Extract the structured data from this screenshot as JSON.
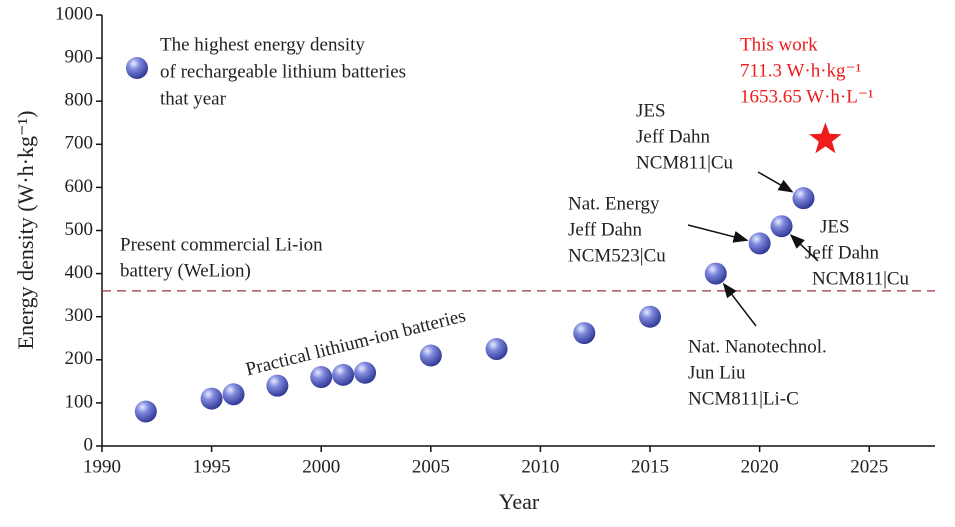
{
  "chart_data": {
    "type": "scatter",
    "x_label": "Year",
    "y_label": "Energy density (W·h·kg⁻¹)",
    "xlim": [
      1990,
      2028
    ],
    "ylim": [
      0,
      1000
    ],
    "xticks": [
      1990,
      1995,
      2000,
      2005,
      2010,
      2015,
      2020,
      2025
    ],
    "yticks": [
      0,
      100,
      200,
      300,
      400,
      500,
      600,
      700,
      800,
      900,
      1000
    ],
    "series": [
      {
        "name": "The highest energy density|of rechargeable lithium batteries|that year",
        "color": "#4a55b8",
        "x": [
          1992,
          1995,
          1996,
          1998,
          2000,
          2001,
          2002,
          2005,
          2008,
          2012,
          2015,
          2018,
          2020,
          2021,
          2022
        ],
        "values": [
          80,
          110,
          120,
          140,
          160,
          165,
          170,
          210,
          225,
          262,
          300,
          400,
          470,
          510,
          575
        ]
      }
    ],
    "legend_lines": [
      "The highest energy density",
      "of rechargeable lithium batteries",
      "that year"
    ],
    "star": {
      "x": 2023,
      "y": 711.3,
      "color": "#ee1c1c",
      "lines": [
        "This work",
        "711.3 W·h·kg⁻¹",
        "1653.65 W·h·L⁻¹"
      ]
    },
    "reference_line": {
      "y": 360,
      "color": "#a0303a",
      "lines": [
        "Present commercial Li-ion",
        "battery (WeLion)"
      ]
    },
    "annotations": [
      {
        "lines": [
          "JES",
          "Jeff Dahn",
          "NCM811|Cu"
        ]
      },
      {
        "lines": [
          "Nat. Energy",
          "Jeff Dahn",
          "NCM523|Cu"
        ]
      },
      {
        "lines": [
          "JES",
          "Jeff Dahn",
          "NCM811|Cu"
        ]
      },
      {
        "lines": [
          "Nat. Nanotechnol.",
          "Jun Liu",
          "NCM811|Li-C"
        ]
      },
      {
        "lines": [
          "Practical lithium-ion batteries"
        ]
      }
    ]
  }
}
